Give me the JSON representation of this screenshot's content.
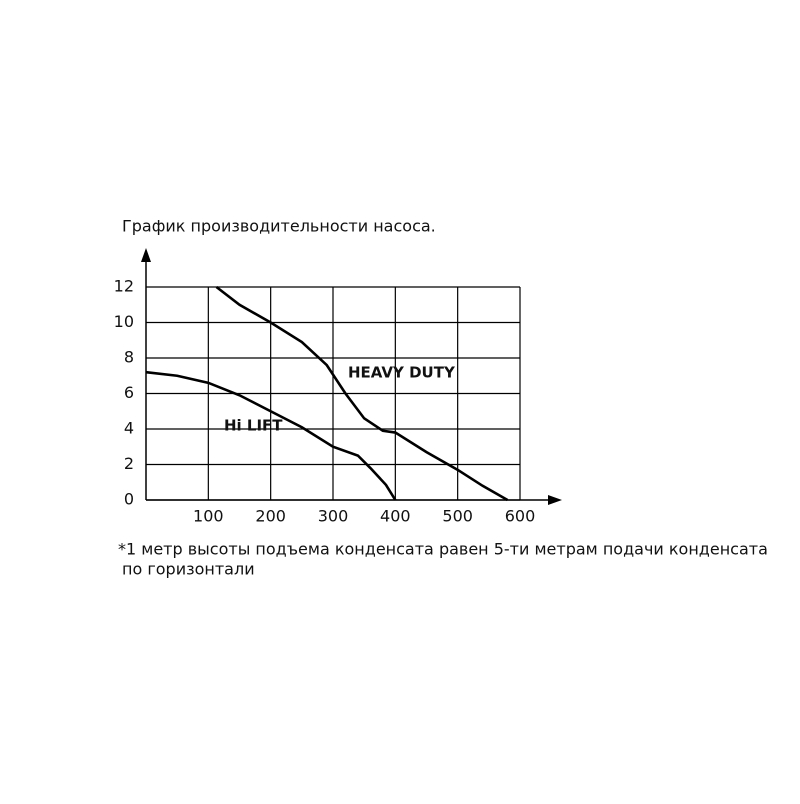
{
  "chart_data": {
    "type": "line",
    "title": "График производительности насоса.",
    "note": [
      "*1 метр высоты подъема конденсата равен 5-ти метрам подачи конденсата",
      "по горизонтали"
    ],
    "xlim": [
      0,
      600
    ],
    "xticks": [
      100,
      200,
      300,
      400,
      500,
      600
    ],
    "ylim": [
      0,
      12
    ],
    "yticks": [
      0,
      2,
      4,
      6,
      8,
      10,
      12
    ],
    "grid": true,
    "series": [
      {
        "name": "HEAVY DUTY",
        "color": "#000000",
        "x": [
          113,
          150,
          200,
          250,
          290,
          320,
          350,
          380,
          400,
          450,
          500,
          540,
          580
        ],
        "values": [
          12,
          11,
          10,
          8.9,
          7.6,
          6,
          4.6,
          3.9,
          3.8,
          2.7,
          1.7,
          0.8,
          0
        ]
      },
      {
        "name": "Hi LIFT",
        "color": "#000000",
        "x": [
          0,
          50,
          100,
          150,
          200,
          250,
          300,
          340,
          360,
          385,
          400
        ],
        "values": [
          7.2,
          7.0,
          6.6,
          5.9,
          5.0,
          4.1,
          3.0,
          2.5,
          1.8,
          0.85,
          0
        ]
      }
    ]
  }
}
